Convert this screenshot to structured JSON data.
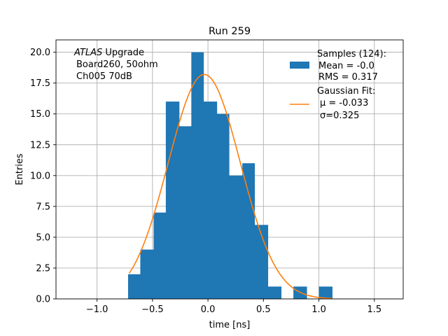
{
  "chart_data": {
    "type": "bar",
    "title": "Run 259",
    "xlabel": "time [ns]",
    "ylabel": "Entries",
    "xlim": [
      -1.37,
      1.76
    ],
    "ylim": [
      0,
      21
    ],
    "grid": true,
    "xticks": [
      "−1.0",
      "−0.5",
      "0.0",
      "0.5",
      "1.0",
      "1.5"
    ],
    "xtick_values": [
      -1.0,
      -0.5,
      0.0,
      0.5,
      1.0,
      1.5
    ],
    "yticks": [
      "0.0",
      "2.5",
      "5.0",
      "7.5",
      "10.0",
      "12.5",
      "15.0",
      "17.5",
      "20.0"
    ],
    "ytick_values": [
      0.0,
      2.5,
      5.0,
      7.5,
      10.0,
      12.5,
      15.0,
      17.5,
      20.0
    ],
    "histogram": {
      "bin_edges": [
        -0.72,
        -0.61,
        -0.49,
        -0.38,
        -0.26,
        -0.15,
        -0.04,
        0.08,
        0.19,
        0.31,
        0.42,
        0.54,
        0.66,
        0.77,
        0.89,
        1.0,
        1.12
      ],
      "counts": [
        2,
        4,
        7,
        16,
        14,
        20,
        16,
        15,
        10,
        11,
        6,
        1,
        0,
        1,
        0,
        1
      ],
      "color": "#1f77b4"
    },
    "fit": {
      "mu": -0.033,
      "sigma": 0.325,
      "amplitude": 18.2,
      "x_range": [
        -0.71,
        1.12
      ],
      "color": "#ff7f0e"
    },
    "annotation": {
      "italic": "ATLAS",
      "rest": " Upgrade",
      "line2": "Board260, 50ohm",
      "line3": "Ch005 70dB"
    },
    "legend": {
      "placement": "top-right",
      "entries": [
        {
          "kind": "patch",
          "color": "#1f77b4",
          "lines": [
            "Samples (124):",
            "Mean = -0.0",
            "RMS = 0.317"
          ]
        },
        {
          "kind": "line",
          "color": "#ff7f0e",
          "lines": [
            "Gaussian Fit:",
            "μ = -0.033",
            "σ=0.325"
          ]
        }
      ]
    }
  }
}
